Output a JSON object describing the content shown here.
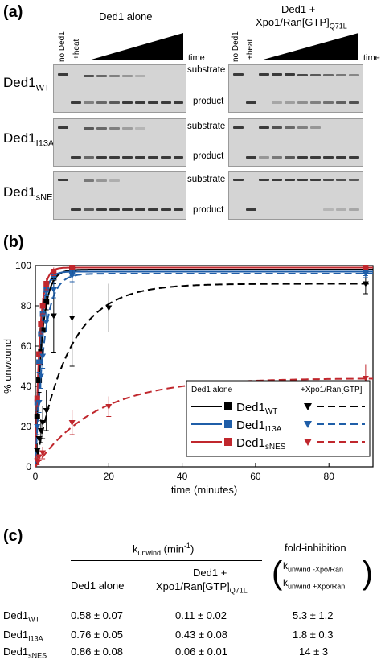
{
  "panels": {
    "a": "(a)",
    "b": "(b)",
    "c": "(c)"
  },
  "gel": {
    "left_title": "Ded1 alone",
    "right_title_line1": "Ded1 +",
    "right_title_line2": "Xpo1/Ran[GTP]",
    "right_title_sub": "Q71L",
    "lane_no_ded1": "no Ded1",
    "lane_heat": "+heat",
    "time": "time",
    "substrate": "substrate",
    "product": "product",
    "rows": [
      {
        "name": "Ded1",
        "sub": "WT"
      },
      {
        "name": "Ded1",
        "sub": "I13A"
      },
      {
        "name": "Ded1",
        "sub": "sNES"
      }
    ]
  },
  "chart_data": {
    "type": "line",
    "xlabel": "time (minutes)",
    "ylabel": "% unwound",
    "xlim": [
      0,
      92
    ],
    "ylim": [
      0,
      100
    ],
    "xticks": [
      0,
      20,
      40,
      60,
      80
    ],
    "yticks": [
      0,
      20,
      40,
      60,
      80,
      100
    ],
    "legend": {
      "position": "bottom-right",
      "header_left": "Ded1 alone",
      "header_right": "+Xpo1/Ran[GTP]",
      "entries": [
        {
          "name": "Ded1",
          "sub": "WT",
          "color": "#000000"
        },
        {
          "name": "Ded1",
          "sub": "I13A",
          "color": "#1f5ea8"
        },
        {
          "name": "Ded1",
          "sub": "sNES",
          "color": "#c0272d"
        }
      ]
    },
    "series": [
      {
        "key": "wt_alone",
        "color": "#000000",
        "dashed": false,
        "marker": "square",
        "k": 0.58,
        "plateau": 98,
        "points": [
          [
            0.5,
            25
          ],
          [
            1,
            43
          ],
          [
            1.5,
            57
          ],
          [
            2,
            68
          ],
          [
            3,
            82
          ],
          [
            5,
            94
          ],
          [
            10,
            98
          ],
          [
            90,
            98
          ]
        ],
        "errors": [
          5,
          6,
          6,
          5,
          4,
          3,
          2,
          2
        ]
      },
      {
        "key": "i13a_alone",
        "color": "#1f5ea8",
        "dashed": false,
        "marker": "square",
        "k": 0.76,
        "plateau": 97,
        "points": [
          [
            0.5,
            32
          ],
          [
            1,
            52
          ],
          [
            1.5,
            66
          ],
          [
            2,
            76
          ],
          [
            3,
            88
          ],
          [
            5,
            95
          ],
          [
            10,
            97
          ],
          [
            90,
            97
          ]
        ],
        "errors": [
          4,
          5,
          5,
          4,
          3,
          2,
          2,
          2
        ]
      },
      {
        "key": "snes_alone",
        "color": "#c0272d",
        "dashed": false,
        "marker": "square",
        "k": 0.86,
        "plateau": 99,
        "points": [
          [
            0.5,
            34
          ],
          [
            1,
            56
          ],
          [
            1.5,
            71
          ],
          [
            2,
            80
          ],
          [
            3,
            91
          ],
          [
            5,
            97
          ],
          [
            10,
            99
          ],
          [
            90,
            99
          ]
        ],
        "errors": [
          4,
          5,
          5,
          4,
          3,
          2,
          1,
          1
        ]
      },
      {
        "key": "wt_xpo",
        "color": "#000000",
        "dashed": true,
        "marker": "triangle-down",
        "k": 0.11,
        "plateau": 91,
        "points": [
          [
            0.5,
            8
          ],
          [
            1,
            14
          ],
          [
            1.5,
            18
          ],
          [
            2,
            22
          ],
          [
            3,
            28
          ],
          [
            5,
            75
          ],
          [
            10,
            74
          ],
          [
            20,
            79
          ],
          [
            90,
            91
          ]
        ],
        "errors": [
          4,
          6,
          6,
          8,
          10,
          18,
          24,
          12,
          5
        ]
      },
      {
        "key": "i13a_xpo",
        "color": "#1f5ea8",
        "dashed": true,
        "marker": "triangle-down",
        "k": 0.43,
        "plateau": 96,
        "points": [
          [
            0.5,
            20
          ],
          [
            1,
            32
          ],
          [
            1.5,
            45
          ],
          [
            2,
            55
          ],
          [
            3,
            72
          ],
          [
            5,
            88
          ],
          [
            10,
            95
          ],
          [
            90,
            96
          ]
        ],
        "errors": [
          4,
          5,
          6,
          6,
          5,
          4,
          3,
          2
        ]
      },
      {
        "key": "snes_xpo",
        "color": "#c0272d",
        "dashed": true,
        "marker": "triangle-down",
        "k": 0.06,
        "plateau": 44,
        "points": [
          [
            0.5,
            3
          ],
          [
            1,
            5
          ],
          [
            2,
            7
          ],
          [
            10,
            22
          ],
          [
            20,
            30
          ],
          [
            90,
            44
          ]
        ],
        "errors": [
          2,
          2,
          3,
          6,
          5,
          7
        ]
      }
    ]
  },
  "table": {
    "header_k": "k",
    "header_k_sub": "unwind",
    "header_k_unit": " (min",
    "header_k_exp": "-1",
    "header_k_close": ")",
    "col_alone": "Ded1 alone",
    "col_xpo_line1": "Ded1 +",
    "col_xpo_line2": "Xpo1/Ran[GTP]",
    "col_xpo_sub": "Q71L",
    "col_fold": "fold-inhibition",
    "frac_k": "k",
    "frac_num_sub": "unwind -Xpo/Ran",
    "frac_den_sub": "unwind +Xpo/Ran",
    "rows": [
      {
        "name": "Ded1",
        "sub": "WT",
        "alone": "0.58 ± 0.07",
        "xpo": "0.11 ± 0.02",
        "fold": "5.3 ± 1.2"
      },
      {
        "name": "Ded1",
        "sub": "I13A",
        "alone": "0.76 ± 0.05",
        "xpo": "0.43 ± 0.08",
        "fold": "1.8 ± 0.3"
      },
      {
        "name": "Ded1",
        "sub": "sNES",
        "alone": "0.86 ± 0.08",
        "xpo": "0.06 ± 0.01",
        "fold": "14 ± 3"
      }
    ]
  }
}
